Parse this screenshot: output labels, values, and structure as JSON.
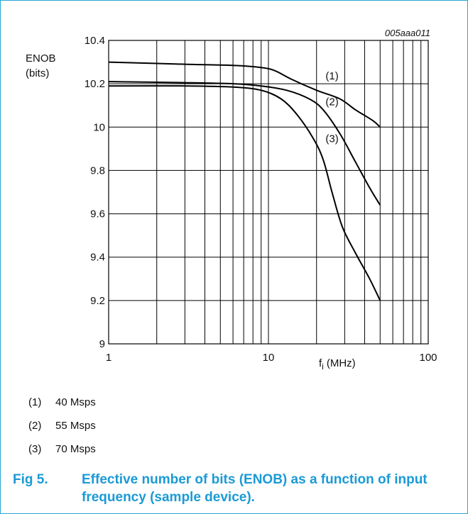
{
  "chart_data": {
    "type": "line",
    "figure_id": "005aaa011",
    "ylabel": "ENOB",
    "ylabel_unit": "(bits)",
    "xlabel_main": "f",
    "xlabel_sub": "i",
    "xlabel_unit": "(MHz)",
    "x_scale": "log",
    "xlim": [
      1,
      100
    ],
    "ylim": [
      9,
      10.4
    ],
    "x_ticks": [
      {
        "value": 1,
        "label": "1"
      },
      {
        "value": 10,
        "label": "10"
      },
      {
        "value": 100,
        "label": "100"
      }
    ],
    "y_ticks": [
      {
        "value": 10.4,
        "label": "10.4"
      },
      {
        "value": 10.2,
        "label": "10.2"
      },
      {
        "value": 10,
        "label": "10"
      },
      {
        "value": 9.8,
        "label": "9.8"
      },
      {
        "value": 9.6,
        "label": "9.6"
      },
      {
        "value": 9.4,
        "label": "9.4"
      },
      {
        "value": 9.2,
        "label": "9.2"
      },
      {
        "value": 9,
        "label": "9"
      }
    ],
    "grid": true,
    "series": [
      {
        "name": "(1)",
        "points": [
          [
            1,
            10.3
          ],
          [
            3,
            10.29
          ],
          [
            6,
            10.285
          ],
          [
            9,
            10.275
          ],
          [
            11,
            10.26
          ],
          [
            14,
            10.22
          ],
          [
            20,
            10.17
          ],
          [
            28,
            10.13
          ],
          [
            35,
            10.08
          ],
          [
            45,
            10.03
          ],
          [
            50,
            10.0
          ]
        ]
      },
      {
        "name": "(2)",
        "points": [
          [
            1,
            10.21
          ],
          [
            3,
            10.205
          ],
          [
            6,
            10.2
          ],
          [
            9,
            10.19
          ],
          [
            13,
            10.17
          ],
          [
            18,
            10.13
          ],
          [
            22,
            10.08
          ],
          [
            28,
            9.97
          ],
          [
            35,
            9.84
          ],
          [
            43,
            9.72
          ],
          [
            50,
            9.64
          ]
        ]
      },
      {
        "name": "(3)",
        "points": [
          [
            1,
            10.19
          ],
          [
            3,
            10.19
          ],
          [
            6,
            10.185
          ],
          [
            9,
            10.17
          ],
          [
            12,
            10.13
          ],
          [
            15,
            10.06
          ],
          [
            19,
            9.95
          ],
          [
            22,
            9.85
          ],
          [
            25,
            9.7
          ],
          [
            29,
            9.54
          ],
          [
            35,
            9.42
          ],
          [
            43,
            9.3
          ],
          [
            50,
            9.2
          ]
        ]
      }
    ],
    "annotations": [
      {
        "label": "(1)",
        "x": 25,
        "y": 10.22
      },
      {
        "label": "(2)",
        "x": 25,
        "y": 10.1
      },
      {
        "label": "(3)",
        "x": 25,
        "y": 9.93
      }
    ]
  },
  "legend": [
    {
      "key": "(1)",
      "text": "40 Msps"
    },
    {
      "key": "(2)",
      "text": "55 Msps"
    },
    {
      "key": "(3)",
      "text": "70 Msps"
    }
  ],
  "caption": {
    "number": "Fig 5.",
    "text": "Effective number of bits (ENOB) as a function of input frequency (sample device)."
  }
}
